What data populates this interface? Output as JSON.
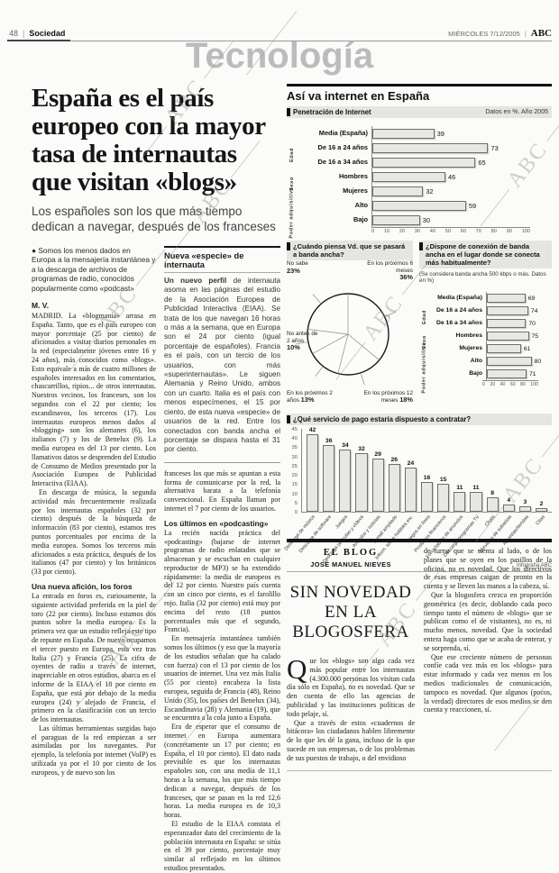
{
  "page": {
    "page_number": "48",
    "section": "Sociedad",
    "divider": "|",
    "date": "MIÉRCOLES 7/12/2005",
    "brand": "ABC",
    "section_title": "Tecnología",
    "watermark": "ABC"
  },
  "article": {
    "headline": "España es el país europeo con la mayor tasa de internautas que visitan «blogs»",
    "subhead": "Los españoles son los que más tiempo dedican a navegar, después de los franceses",
    "lead_bullet": "● Somos los menos dados en Europa a la mensajería instantánea y a la descarga de archivos de programas de radio, conocidos popularmente como «podcast»",
    "byline": "M. V.",
    "col1": {
      "p1": "MADRID. La «blogmanía» arrasa en España. Tanto, que es el país europeo con mayor porcentaje (25 por ciento) de aficionados a visitar diarios personales en la red (especialmente jóvenes entre 16 y 24 años), más conocidos como «blogs». Esto equivale a más de cuatro millones de españoles interesados en los comentarios, chascarrillos, ripios... de otros internautas. Nuestros vecinos, los franceses, son los segundos con el 22 por ciento; los escandinavos, los terceros (17). Los internautas europeos menos dados al «blogging» son los alemanes (6), los italianos (7) y los de Benelux (9). La media europea es del 13 por ciento. Los llamativos datos se desprenden del Estudio de Consumo de Medios presentado por la Asociación Europea de Publicidad Interactiva (EIAA).",
      "p2": "En descarga de música, la segunda actividad más frecuentemente realizada por los internautas españoles (32 por ciento) después de la búsqueda de información (83 por ciento), estamos tres puntos porcentuales por encima de la media europea. Somos los terceros más aficionados a esta práctica, después de los italianos (47 por ciento) y los británicos (33 por ciento).",
      "h1": "Una nueva afición, los foros",
      "p3": "La entrada en foros es, curiosamente, la siguiente actividad preferida en la piel de toro (22 por ciento). Incluso estamos dos puntos sobre la media europea. Es la primera vez que un estudio refleja este tipo de repunte en España. De nuevo ocupamos el tercer puesto en Europa, esta vez tras Italia (27) y Francia (25). La cifra de oyentes de radio a través de internet, inapreciable en otros estudios, abarca en el informe de la EIAA el 18 por ciento en España, que está por debajo de la media europea (24) y alejado de Francia, el primero en la clasificación con un tercio de los internautas.",
      "p4": "Las últimas herramientas surgidas bajo el paraguas de la red empiezan a ser asimiladas por los navegantes. Por ejemplo, la telefonía por internet (VoIP) es utilizada ya por el 10 por ciento de los europeos, y de nuevo son los"
    },
    "sidebox": {
      "title": "Nueva «especie» de internauta",
      "lead": "Un nuevo perfil",
      "body": "de internauta asoma en las páginas del estudio de la Asociación Europea de Publicidad Interactiva (EIAA). Se trata de los que navegan 16 horas o más a la semana, que en Europa son el 24 por ciento (igual porcentaje de españoles). Francia es el país, con un tercio de los usuarios, con más «superinternautas». Le siguen Alemania y Reino Unido, ambos con un cuarto. Italia es el país con menos especímenes, el 15 por ciento, de esta nueva «especie» de usuarios de la red. Entre los conectados con banda ancha el porcentaje se dispara hasta el 31 por ciento."
    },
    "col2": {
      "p1": "franceses los que más se apuntan a esta forma de comunicarse por la red, la alternativa barata a la telefonía convencional. En España llaman por internet el 7 por ciento de los usuarios.",
      "h1": "Los últimos en «podcasting»",
      "p2": "La recién nacida práctica del «podcasting» (bajarse de internet programas de radio enlatados que se almacenan y se escuchan en cualquier reproductor de MP3) se ha extendido rápidamente: la media de europeos es del 12 por ciento. Nuestro país cuenta con un cinco por ciento, es el farolillo rojo. Italia (32 por ciento) está muy por encima del resto (18 puntos porcentuales más que el segundo, Francia).",
      "p3": "En mensajería instantánea también somos los últimos (y eso que la mayoría de los estudios señalan que ha calado con fuerza) con el 13 por ciento de los usuarios de internet. Una vez más Italia (55 por ciento) encabeza la lista europea, seguida de Francia (48), Reino Unido (35), los países del Benelux (34), Escandinavia (28) y Alemania (19), que se encuentra a la cola junto a España.",
      "p4": "Era de esperar que el consumo de internet en Europa aumentara (concretamente un 17 por ciento; en España, el 10 por ciento). El dato nada previsible es que los internautas españoles son, con una media de 11,1 horas a la semana, los que más tiempo dedican a navegar, después de los franceses, que se pasan en la red 12,6 horas. La media europea es de 10,3 horas.",
      "p5": "El estudio de la EIAA constata el esperanzador dato del crecimiento de la población internauta en España: se sitúa en el 39 por ciento, porcentaje muy similar al reflejado en los últimos estudios presentados."
    }
  },
  "infographic": {
    "main_title": "Así va internet en España",
    "credit": "Infografía ABC"
  },
  "chart_data": [
    {
      "type": "bar",
      "orientation": "horizontal",
      "title": "Penetración de Internet",
      "note": "Datos en %. Año 2005",
      "categories": [
        "Media (España)",
        "De 16 a 24 años",
        "De 16 a 34 años",
        "Hombres",
        "Mujeres",
        "Alto",
        "Bajo"
      ],
      "values": [
        39,
        73,
        65,
        46,
        32,
        59,
        30
      ],
      "groups": [
        {
          "label": "Edad",
          "start": 1,
          "span": 2
        },
        {
          "label": "Sexo",
          "start": 3,
          "span": 2
        },
        {
          "label": "Poder adquisitivo",
          "start": 5,
          "span": 2
        }
      ],
      "xlim": [
        0,
        100
      ],
      "xticks": [
        0,
        10,
        20,
        30,
        40,
        50,
        60,
        70,
        80,
        90,
        100
      ]
    },
    {
      "type": "pie",
      "title": "¿Cuándo piensa Vd. que se pasará a banda ancha?",
      "slices": [
        {
          "label": "En los próximos 6 meses",
          "pct": 36
        },
        {
          "label": "En los próximos 12 meses",
          "pct": 18
        },
        {
          "label": "En los próximos 2 años",
          "pct": 13
        },
        {
          "label": "No antes de 2 años",
          "pct": 10
        },
        {
          "label": "No sabe",
          "pct": 23
        }
      ]
    },
    {
      "type": "bar",
      "orientation": "horizontal",
      "title": "¿Dispone de conexión de banda ancha en el lugar donde se conecta más habitualmente?",
      "note": "(Se considera banda ancha 500 kbps o más. Datos en %)",
      "categories": [
        "Media (España)",
        "De 16 a 24 años",
        "De 16 a 34 años",
        "Hombres",
        "Mujeres",
        "Alto",
        "Bajo"
      ],
      "values": [
        69,
        74,
        70,
        75,
        61,
        80,
        71
      ],
      "groups": [
        {
          "label": "Edad",
          "start": 1,
          "span": 2
        },
        {
          "label": "Sexo",
          "start": 3,
          "span": 2
        },
        {
          "label": "Poder adquisitivo",
          "start": 5,
          "span": 2
        }
      ],
      "xlim": [
        0,
        100
      ],
      "xticks": [
        0,
        20,
        40,
        60,
        80,
        100
      ]
    },
    {
      "type": "bar",
      "orientation": "vertical",
      "title": "¿Qué servicio de pago estaría dispuesto a contratar?",
      "categories": [
        "Descarga de música",
        "Descarga de software",
        "Juegos",
        "Descarga películas y vídeos",
        "Artículos y noticias",
        "E-mail ampliado",
        "Inform. sobre hobbies etc.",
        "Juegos en línea",
        "Productos financieros",
        "Foros/tablón de anuncios",
        "Descarga programas TV",
        "Chats",
        "Servicios de subastas",
        "Apuestas/tiendas",
        "Citas"
      ],
      "values": [
        42,
        36,
        34,
        32,
        29,
        26,
        24,
        16,
        15,
        11,
        11,
        8,
        4,
        3,
        2
      ],
      "ylim": [
        0,
        45
      ],
      "yticks": [
        0,
        5,
        10,
        15,
        20,
        25,
        30,
        35,
        40,
        45
      ]
    }
  ],
  "blog": {
    "kicker": "EL BLOG",
    "author": "JOSÉ MANUEL NIEVES",
    "headline": "SIN NOVEDAD EN LA BLOGOSFERA",
    "col1": {
      "p1": "Que los «blogs» son algo cada vez más popular entre los internautas (4.300.000 personas los visitan cada día sólo en España), no es novedad. Que se den cuenta de ello las agencias de publicidad y las instituciones políticas de todo pelaje, sí.",
      "p2": "Que a través de estos «cuadernos de bitácora» los ciudadanos hablen libremente de lo que les dé la gana, incluso de lo que sucede en sus empresas, o de los problemas de sus puestos de trabajo, o del envidioso"
    },
    "col2": {
      "p1": "de turno que se sienta al lado, o de los planes que se oyen en los pasillos de la oficina, no es novedad. Que los directivos de esas empresas caigan de pronto en la cuenta y se lleven las manos a la cabeza, sí.",
      "p2": "Que la blogosfera crezca en proporción geométrica (es decir, doblando cada poco tiempo tanto el número de «blogs» que se publican como el de visitantes), no es, ni mucho menos, novedad. Que la sociedad entera haga como que se acaba de enterar, y se sorprenda, sí.",
      "p3": "Que ese creciente número de personas confíe cada vez más en los «blogs» para estar informado y cada vez menos en los medios tradicionales de comunicación, tampoco es novedad. Que algunos (pocos, la verdad) directores de esos medios se den cuenta y reaccionen, sí."
    }
  }
}
